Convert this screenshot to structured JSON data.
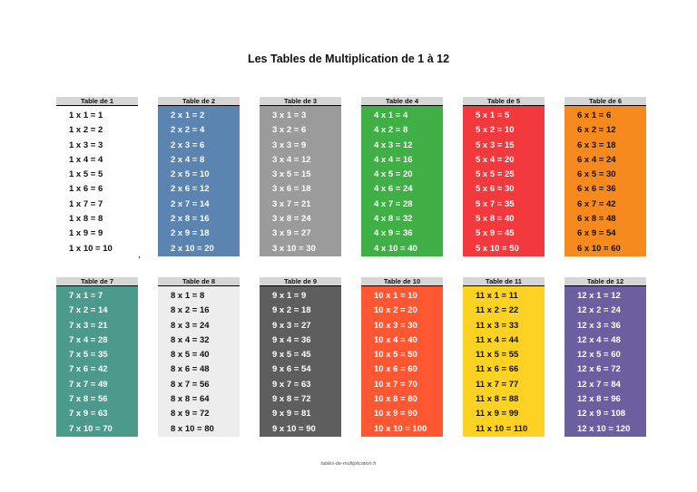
{
  "title": "Les Tables de Multiplication de 1 à 12",
  "footer": "tables-de-multiplication.fr",
  "tables": [
    {
      "label": "Table de 1",
      "bg": "#ffffff",
      "fg": "#111111",
      "lines": [
        "1 x 1 = 1",
        "1 x 2 = 2",
        "1 x 3 = 3",
        "1 x 4 = 4",
        "1 x 5 = 5",
        "1 x 6 = 6",
        "1 x 7 = 7",
        "1 x 8 = 8",
        "1 x 9 = 9",
        "1 x 10 = 10"
      ]
    },
    {
      "label": "Table de 2",
      "bg": "#5b84b1",
      "fg": "#ffffff",
      "lines": [
        "2 x 1 = 2",
        "2 x 2 = 4",
        "2 x 3 = 6",
        "2 x 4 = 8",
        "2 x 5 = 10",
        "2 x 6 = 12",
        "2 x 7 = 14",
        "2 x 8 = 16",
        "2 x 9 = 18",
        "2 x 10 = 20"
      ]
    },
    {
      "label": "Table de 3",
      "bg": "#9b9b9b",
      "fg": "#ffffff",
      "lines": [
        "3 x 1 = 3",
        "3 x 2 = 6",
        "3 x 3 = 9",
        "3 x 4 = 12",
        "3 x 5 = 15",
        "3 x 6 = 18",
        "3 x 7 = 21",
        "3 x 8 = 24",
        "3 x 9 = 27",
        "3 x 10 = 30"
      ]
    },
    {
      "label": "Table de 4",
      "bg": "#3faf46",
      "fg": "#ffffff",
      "lines": [
        "4 x 1 = 4",
        "4 x 2 = 8",
        "4 x 3 = 12",
        "4 x 4 = 16",
        "4 x 5 = 20",
        "4 x 6 = 24",
        "4 x 7 = 28",
        "4 x 8 = 32",
        "4 x 9 = 36",
        "4 x 10 = 40"
      ]
    },
    {
      "label": "Table de 5",
      "bg": "#f2393e",
      "fg": "#ffffff",
      "lines": [
        "5 x 1 = 5",
        "5 x 2 = 10",
        "5 x 3 = 15",
        "5 x 4 = 20",
        "5 x 5 = 25",
        "5 x 6 = 30",
        "5 x 7 = 35",
        "5 x 8 = 40",
        "5 x 9 = 45",
        "5 x 10 = 50"
      ]
    },
    {
      "label": "Table de 6",
      "bg": "#f68a1f",
      "fg": "#111111",
      "lines": [
        "6 x 1 = 6",
        "6 x 2 = 12",
        "6 x 3 = 18",
        "6 x 4 = 24",
        "6 x 5 = 30",
        "6 x 6 = 36",
        "6 x 7 = 42",
        "6 x 8 = 48",
        "6 x 9 = 54",
        "6 x 10 = 60"
      ]
    },
    {
      "label": "Table de 7",
      "bg": "#4c9a8c",
      "fg": "#ffffff",
      "lines": [
        "7 x 1 = 7",
        "7 x 2 = 14",
        "7 x 3 = 21",
        "7 x 4 = 28",
        "7 x 5 = 35",
        "7 x 6 = 42",
        "7 x 7 = 49",
        "7 x 8 = 56",
        "7 x 9 = 63",
        "7 x 10 = 70"
      ]
    },
    {
      "label": "Table de 8",
      "bg": "#ededed",
      "fg": "#111111",
      "lines": [
        "8 x 1 = 8",
        "8 x 2 = 16",
        "8 x 3 = 24",
        "8 x 4 = 32",
        "8 x 5 = 40",
        "8 x 6 = 48",
        "8 x 7 = 56",
        "8 x 8 = 64",
        "8 x 9 = 72",
        "8 x 10 = 80"
      ]
    },
    {
      "label": "Table de 9",
      "bg": "#5e5e5e",
      "fg": "#ffffff",
      "lines": [
        "9 x 1 = 9",
        "9 x 2 = 18",
        "9 x 3 = 27",
        "9 x 4 = 36",
        "9 x 5 = 45",
        "9 x 6 = 54",
        "9 x 7 = 63",
        "9 x 8 = 72",
        "9 x 9 = 81",
        "9 x 10 = 90"
      ]
    },
    {
      "label": "Table de 10",
      "bg": "#fe5732",
      "fg": "#ffffff",
      "lines": [
        "10 x 1 = 10",
        "10 x 2 = 20",
        "10 x 3 = 30",
        "10 x 4 = 40",
        "10 x 5 = 50",
        "10 x 6 = 60",
        "10 x 7 = 70",
        "10 x 8 = 80",
        "10 x 9 = 90",
        "10 x 10 = 100"
      ]
    },
    {
      "label": "Table de 11",
      "bg": "#fdd222",
      "fg": "#111111",
      "lines": [
        "11 x 1 = 11",
        "11 x 2 = 22",
        "11 x 3 = 33",
        "11 x 4 = 44",
        "11 x 5 = 55",
        "11 x 6 = 66",
        "11 x 7 = 77",
        "11 x 8 = 88",
        "11 x 9 = 99",
        "11 x 10 = 110"
      ]
    },
    {
      "label": "Table de 12",
      "bg": "#6c5fa0",
      "fg": "#ffffff",
      "lines": [
        "12 x 1 = 12",
        "12 x 2 = 24",
        "12 x 3 = 36",
        "12 x 4 = 48",
        "12 x 5 = 60",
        "12 x 6 = 72",
        "12 x 7 = 84",
        "12 x 8 = 96",
        "12 x 9 = 108",
        "12 x 10 = 120"
      ]
    }
  ]
}
